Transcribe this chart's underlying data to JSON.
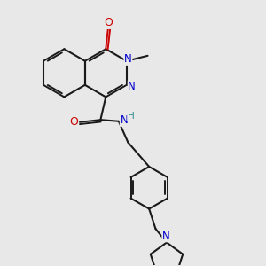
{
  "background_color": "#e8e8e8",
  "bond_color": "#1a1a1a",
  "atom_colors": {
    "O": "#cc0000",
    "N": "#0000cc",
    "H": "#2e8b8b",
    "C": "#1a1a1a"
  },
  "figsize": [
    3.0,
    3.0
  ],
  "dpi": 100,
  "xlim": [
    0,
    9
  ],
  "ylim": [
    0,
    9
  ]
}
